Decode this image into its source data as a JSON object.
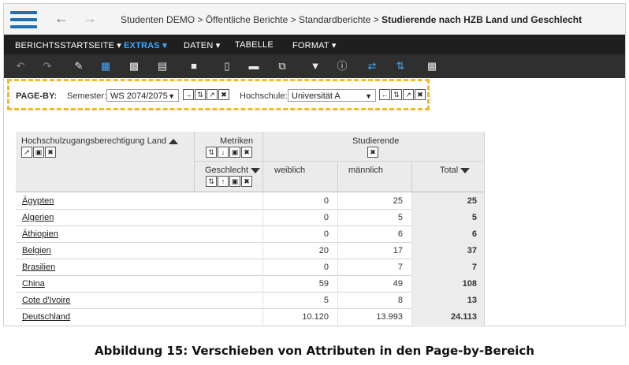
{
  "breadcrumb": {
    "items": [
      "Studenten DEMO",
      "Öffentliche Berichte",
      "Standardberichte"
    ],
    "current": "Studierende nach HZB Land und Geschlecht",
    "separator": ">"
  },
  "menu": {
    "items": [
      "BERICHTSSTARTSEITE",
      "EXTRAS",
      "DATEN",
      "TABELLE",
      "FORMAT"
    ],
    "active": "EXTRAS",
    "accent_color": "#39a6ff"
  },
  "toolbar": {
    "icons": [
      "undo-icon",
      "redo-icon",
      "edit-icon",
      "grid-view-icon",
      "chart-view-icon",
      "grid-chart-icon",
      "save-icon",
      "page-icon",
      "folder-icon",
      "copy-icon",
      "filter-icon",
      "info-icon",
      "pivot-icon",
      "sort-icon",
      "calculator-icon"
    ]
  },
  "page_by": {
    "label": "PAGE-BY:",
    "semester_label": "Semester:",
    "semester_value": "WS 2074/2075",
    "hochschule_label": "Hochschule:",
    "hochschule_value": "Universität A",
    "highlight_color": "#f3b824"
  },
  "grid": {
    "row_header": "Hochschulzugangsberechtigung Land",
    "metrics_header": "Metriken",
    "studierende_header": "Studierende",
    "geschlecht_header": "Geschlecht",
    "columns": [
      "weiblich",
      "männlich",
      "Total"
    ],
    "rows": [
      {
        "land": "Ägypten",
        "weiblich": "0",
        "maennlich": "25",
        "total": "25"
      },
      {
        "land": "Algerien",
        "weiblich": "0",
        "maennlich": "5",
        "total": "5"
      },
      {
        "land": "Äthiopien",
        "weiblich": "0",
        "maennlich": "6",
        "total": "6"
      },
      {
        "land": "Belgien",
        "weiblich": "20",
        "maennlich": "17",
        "total": "37"
      },
      {
        "land": "Brasilien",
        "weiblich": "0",
        "maennlich": "7",
        "total": "7"
      },
      {
        "land": "China",
        "weiblich": "59",
        "maennlich": "49",
        "total": "108"
      },
      {
        "land": "Cote d'Ivoire",
        "weiblich": "5",
        "maennlich": "8",
        "total": "13"
      },
      {
        "land": "Deutschland",
        "weiblich": "10.120",
        "maennlich": "13.993",
        "total": "24.113"
      }
    ]
  },
  "caption": "Abbildung 15: Verschieben von Attributen in den Page-by-Bereich"
}
